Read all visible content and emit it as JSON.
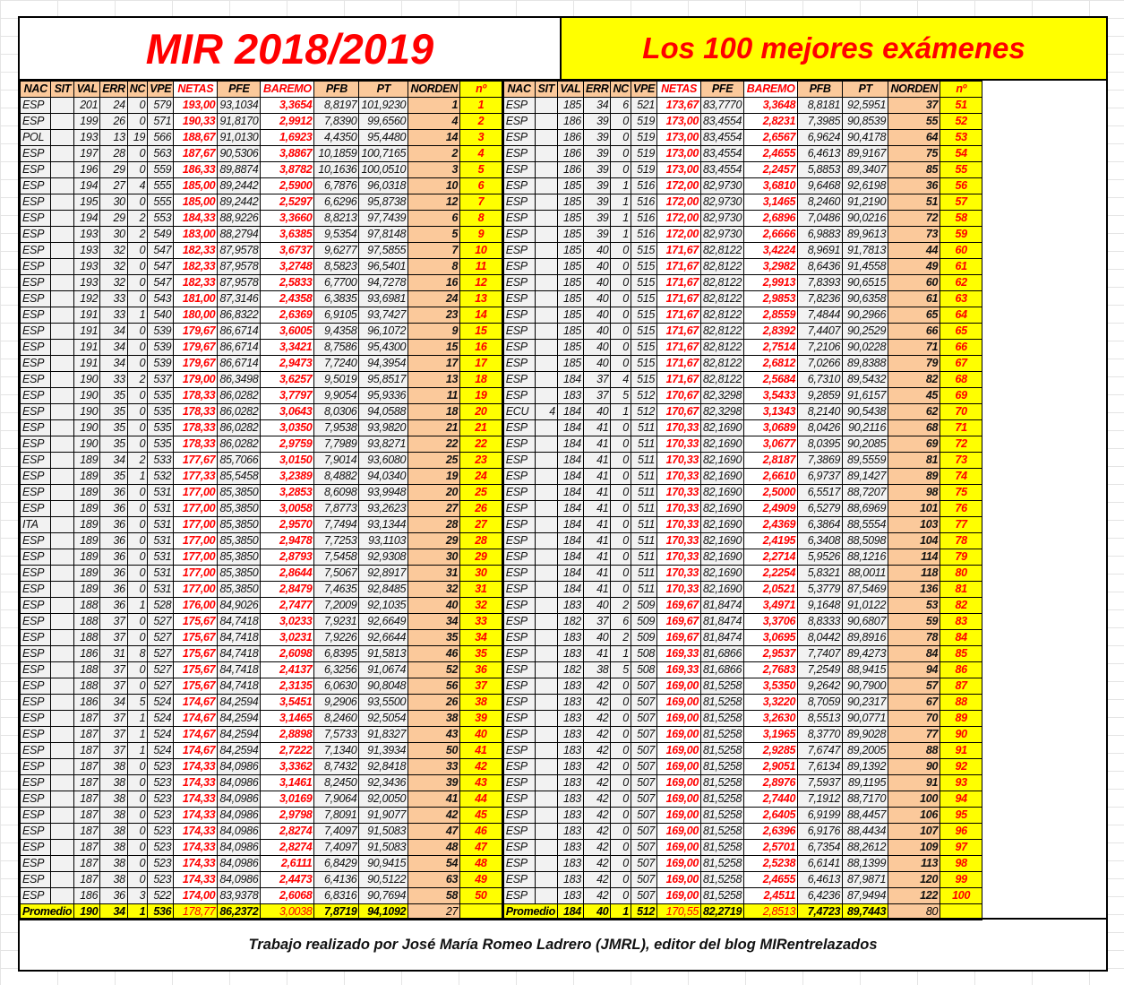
{
  "title_left": "MIR 2018/2019",
  "title_right": "Los 100 mejores exámenes",
  "columns": [
    "NAC",
    "SIT",
    "VAL",
    "ERR",
    "NC",
    "VPE",
    "NETAS",
    "PFE",
    "BAREMO",
    "PFB",
    "PT",
    "NORDEN",
    "nº"
  ],
  "left_rows": [
    [
      "ESP",
      "",
      "201",
      "24",
      "0",
      "579",
      "193,00",
      "93,1034",
      "3,3654",
      "8,8197",
      "101,9230",
      "1",
      "1"
    ],
    [
      "ESP",
      "",
      "199",
      "26",
      "0",
      "571",
      "190,33",
      "91,8170",
      "2,9912",
      "7,8390",
      "99,6560",
      "4",
      "2"
    ],
    [
      "POL",
      "",
      "193",
      "13",
      "19",
      "566",
      "188,67",
      "91,0130",
      "1,6923",
      "4,4350",
      "95,4480",
      "14",
      "3"
    ],
    [
      "ESP",
      "",
      "197",
      "28",
      "0",
      "563",
      "187,67",
      "90,5306",
      "3,8867",
      "10,1859",
      "100,7165",
      "2",
      "4"
    ],
    [
      "ESP",
      "",
      "196",
      "29",
      "0",
      "559",
      "186,33",
      "89,8874",
      "3,8782",
      "10,1636",
      "100,0510",
      "3",
      "5"
    ],
    [
      "ESP",
      "",
      "194",
      "27",
      "4",
      "555",
      "185,00",
      "89,2442",
      "2,5900",
      "6,7876",
      "96,0318",
      "10",
      "6"
    ],
    [
      "ESP",
      "",
      "195",
      "30",
      "0",
      "555",
      "185,00",
      "89,2442",
      "2,5297",
      "6,6296",
      "95,8738",
      "12",
      "7"
    ],
    [
      "ESP",
      "",
      "194",
      "29",
      "2",
      "553",
      "184,33",
      "88,9226",
      "3,3660",
      "8,8213",
      "97,7439",
      "6",
      "8"
    ],
    [
      "ESP",
      "",
      "193",
      "30",
      "2",
      "549",
      "183,00",
      "88,2794",
      "3,6385",
      "9,5354",
      "97,8148",
      "5",
      "9"
    ],
    [
      "ESP",
      "",
      "193",
      "32",
      "0",
      "547",
      "182,33",
      "87,9578",
      "3,6737",
      "9,6277",
      "97,5855",
      "7",
      "10"
    ],
    [
      "ESP",
      "",
      "193",
      "32",
      "0",
      "547",
      "182,33",
      "87,9578",
      "3,2748",
      "8,5823",
      "96,5401",
      "8",
      "11"
    ],
    [
      "ESP",
      "",
      "193",
      "32",
      "0",
      "547",
      "182,33",
      "87,9578",
      "2,5833",
      "6,7700",
      "94,7278",
      "16",
      "12"
    ],
    [
      "ESP",
      "",
      "192",
      "33",
      "0",
      "543",
      "181,00",
      "87,3146",
      "2,4358",
      "6,3835",
      "93,6981",
      "24",
      "13"
    ],
    [
      "ESP",
      "",
      "191",
      "33",
      "1",
      "540",
      "180,00",
      "86,8322",
      "2,6369",
      "6,9105",
      "93,7427",
      "23",
      "14"
    ],
    [
      "ESP",
      "",
      "191",
      "34",
      "0",
      "539",
      "179,67",
      "86,6714",
      "3,6005",
      "9,4358",
      "96,1072",
      "9",
      "15"
    ],
    [
      "ESP",
      "",
      "191",
      "34",
      "0",
      "539",
      "179,67",
      "86,6714",
      "3,3421",
      "8,7586",
      "95,4300",
      "15",
      "16"
    ],
    [
      "ESP",
      "",
      "191",
      "34",
      "0",
      "539",
      "179,67",
      "86,6714",
      "2,9473",
      "7,7240",
      "94,3954",
      "17",
      "17"
    ],
    [
      "ESP",
      "",
      "190",
      "33",
      "2",
      "537",
      "179,00",
      "86,3498",
      "3,6257",
      "9,5019",
      "95,8517",
      "13",
      "18"
    ],
    [
      "ESP",
      "",
      "190",
      "35",
      "0",
      "535",
      "178,33",
      "86,0282",
      "3,7797",
      "9,9054",
      "95,9336",
      "11",
      "19"
    ],
    [
      "ESP",
      "",
      "190",
      "35",
      "0",
      "535",
      "178,33",
      "86,0282",
      "3,0643",
      "8,0306",
      "94,0588",
      "18",
      "20"
    ],
    [
      "ESP",
      "",
      "190",
      "35",
      "0",
      "535",
      "178,33",
      "86,0282",
      "3,0350",
      "7,9538",
      "93,9820",
      "21",
      "21"
    ],
    [
      "ESP",
      "",
      "190",
      "35",
      "0",
      "535",
      "178,33",
      "86,0282",
      "2,9759",
      "7,7989",
      "93,8271",
      "22",
      "22"
    ],
    [
      "ESP",
      "",
      "189",
      "34",
      "2",
      "533",
      "177,67",
      "85,7066",
      "3,0150",
      "7,9014",
      "93,6080",
      "25",
      "23"
    ],
    [
      "ESP",
      "",
      "189",
      "35",
      "1",
      "532",
      "177,33",
      "85,5458",
      "3,2389",
      "8,4882",
      "94,0340",
      "19",
      "24"
    ],
    [
      "ESP",
      "",
      "189",
      "36",
      "0",
      "531",
      "177,00",
      "85,3850",
      "3,2853",
      "8,6098",
      "93,9948",
      "20",
      "25"
    ],
    [
      "ESP",
      "",
      "189",
      "36",
      "0",
      "531",
      "177,00",
      "85,3850",
      "3,0058",
      "7,8773",
      "93,2623",
      "27",
      "26"
    ],
    [
      "ITA",
      "",
      "189",
      "36",
      "0",
      "531",
      "177,00",
      "85,3850",
      "2,9570",
      "7,7494",
      "93,1344",
      "28",
      "27"
    ],
    [
      "ESP",
      "",
      "189",
      "36",
      "0",
      "531",
      "177,00",
      "85,3850",
      "2,9478",
      "7,7253",
      "93,1103",
      "29",
      "28"
    ],
    [
      "ESP",
      "",
      "189",
      "36",
      "0",
      "531",
      "177,00",
      "85,3850",
      "2,8793",
      "7,5458",
      "92,9308",
      "30",
      "29"
    ],
    [
      "ESP",
      "",
      "189",
      "36",
      "0",
      "531",
      "177,00",
      "85,3850",
      "2,8644",
      "7,5067",
      "92,8917",
      "31",
      "30"
    ],
    [
      "ESP",
      "",
      "189",
      "36",
      "0",
      "531",
      "177,00",
      "85,3850",
      "2,8479",
      "7,4635",
      "92,8485",
      "32",
      "31"
    ],
    [
      "ESP",
      "",
      "188",
      "36",
      "1",
      "528",
      "176,00",
      "84,9026",
      "2,7477",
      "7,2009",
      "92,1035",
      "40",
      "32"
    ],
    [
      "ESP",
      "",
      "188",
      "37",
      "0",
      "527",
      "175,67",
      "84,7418",
      "3,0233",
      "7,9231",
      "92,6649",
      "34",
      "33"
    ],
    [
      "ESP",
      "",
      "188",
      "37",
      "0",
      "527",
      "175,67",
      "84,7418",
      "3,0231",
      "7,9226",
      "92,6644",
      "35",
      "34"
    ],
    [
      "ESP",
      "",
      "186",
      "31",
      "8",
      "527",
      "175,67",
      "84,7418",
      "2,6098",
      "6,8395",
      "91,5813",
      "46",
      "35"
    ],
    [
      "ESP",
      "",
      "188",
      "37",
      "0",
      "527",
      "175,67",
      "84,7418",
      "2,4137",
      "6,3256",
      "91,0674",
      "52",
      "36"
    ],
    [
      "ESP",
      "",
      "188",
      "37",
      "0",
      "527",
      "175,67",
      "84,7418",
      "2,3135",
      "6,0630",
      "90,8048",
      "56",
      "37"
    ],
    [
      "ESP",
      "",
      "186",
      "34",
      "5",
      "524",
      "174,67",
      "84,2594",
      "3,5451",
      "9,2906",
      "93,5500",
      "26",
      "38"
    ],
    [
      "ESP",
      "",
      "187",
      "37",
      "1",
      "524",
      "174,67",
      "84,2594",
      "3,1465",
      "8,2460",
      "92,5054",
      "38",
      "39"
    ],
    [
      "ESP",
      "",
      "187",
      "37",
      "1",
      "524",
      "174,67",
      "84,2594",
      "2,8898",
      "7,5733",
      "91,8327",
      "43",
      "40"
    ],
    [
      "ESP",
      "",
      "187",
      "37",
      "1",
      "524",
      "174,67",
      "84,2594",
      "2,7222",
      "7,1340",
      "91,3934",
      "50",
      "41"
    ],
    [
      "ESP",
      "",
      "187",
      "38",
      "0",
      "523",
      "174,33",
      "84,0986",
      "3,3362",
      "8,7432",
      "92,8418",
      "33",
      "42"
    ],
    [
      "ESP",
      "",
      "187",
      "38",
      "0",
      "523",
      "174,33",
      "84,0986",
      "3,1461",
      "8,2450",
      "92,3436",
      "39",
      "43"
    ],
    [
      "ESP",
      "",
      "187",
      "38",
      "0",
      "523",
      "174,33",
      "84,0986",
      "3,0169",
      "7,9064",
      "92,0050",
      "41",
      "44"
    ],
    [
      "ESP",
      "",
      "187",
      "38",
      "0",
      "523",
      "174,33",
      "84,0986",
      "2,9798",
      "7,8091",
      "91,9077",
      "42",
      "45"
    ],
    [
      "ESP",
      "",
      "187",
      "38",
      "0",
      "523",
      "174,33",
      "84,0986",
      "2,8274",
      "7,4097",
      "91,5083",
      "47",
      "46"
    ],
    [
      "ESP",
      "",
      "187",
      "38",
      "0",
      "523",
      "174,33",
      "84,0986",
      "2,8274",
      "7,4097",
      "91,5083",
      "48",
      "47"
    ],
    [
      "ESP",
      "",
      "187",
      "38",
      "0",
      "523",
      "174,33",
      "84,0986",
      "2,6111",
      "6,8429",
      "90,9415",
      "54",
      "48"
    ],
    [
      "ESP",
      "",
      "187",
      "38",
      "0",
      "523",
      "174,33",
      "84,0986",
      "2,4473",
      "6,4136",
      "90,5122",
      "63",
      "49"
    ],
    [
      "ESP",
      "",
      "186",
      "36",
      "3",
      "522",
      "174,00",
      "83,9378",
      "2,6068",
      "6,8316",
      "90,7694",
      "58",
      "50"
    ]
  ],
  "left_average": [
    "Promedio",
    "190",
    "34",
    "1",
    "536",
    "178,77",
    "86,2372",
    "3,0038",
    "7,8719",
    "94,1092",
    "27",
    ""
  ],
  "right_rows": [
    [
      "ESP",
      "",
      "185",
      "34",
      "6",
      "521",
      "173,67",
      "83,7770",
      "3,3648",
      "8,8181",
      "92,5951",
      "37",
      "51"
    ],
    [
      "ESP",
      "",
      "186",
      "39",
      "0",
      "519",
      "173,00",
      "83,4554",
      "2,8231",
      "7,3985",
      "90,8539",
      "55",
      "52"
    ],
    [
      "ESP",
      "",
      "186",
      "39",
      "0",
      "519",
      "173,00",
      "83,4554",
      "2,6567",
      "6,9624",
      "90,4178",
      "64",
      "53"
    ],
    [
      "ESP",
      "",
      "186",
      "39",
      "0",
      "519",
      "173,00",
      "83,4554",
      "2,4655",
      "6,4613",
      "89,9167",
      "75",
      "54"
    ],
    [
      "ESP",
      "",
      "186",
      "39",
      "0",
      "519",
      "173,00",
      "83,4554",
      "2,2457",
      "5,8853",
      "89,3407",
      "85",
      "55"
    ],
    [
      "ESP",
      "",
      "185",
      "39",
      "1",
      "516",
      "172,00",
      "82,9730",
      "3,6810",
      "9,6468",
      "92,6198",
      "36",
      "56"
    ],
    [
      "ESP",
      "",
      "185",
      "39",
      "1",
      "516",
      "172,00",
      "82,9730",
      "3,1465",
      "8,2460",
      "91,2190",
      "51",
      "57"
    ],
    [
      "ESP",
      "",
      "185",
      "39",
      "1",
      "516",
      "172,00",
      "82,9730",
      "2,6896",
      "7,0486",
      "90,0216",
      "72",
      "58"
    ],
    [
      "ESP",
      "",
      "185",
      "39",
      "1",
      "516",
      "172,00",
      "82,9730",
      "2,6666",
      "6,9883",
      "89,9613",
      "73",
      "59"
    ],
    [
      "ESP",
      "",
      "185",
      "40",
      "0",
      "515",
      "171,67",
      "82,8122",
      "3,4224",
      "8,9691",
      "91,7813",
      "44",
      "60"
    ],
    [
      "ESP",
      "",
      "185",
      "40",
      "0",
      "515",
      "171,67",
      "82,8122",
      "3,2982",
      "8,6436",
      "91,4558",
      "49",
      "61"
    ],
    [
      "ESP",
      "",
      "185",
      "40",
      "0",
      "515",
      "171,67",
      "82,8122",
      "2,9913",
      "7,8393",
      "90,6515",
      "60",
      "62"
    ],
    [
      "ESP",
      "",
      "185",
      "40",
      "0",
      "515",
      "171,67",
      "82,8122",
      "2,9853",
      "7,8236",
      "90,6358",
      "61",
      "63"
    ],
    [
      "ESP",
      "",
      "185",
      "40",
      "0",
      "515",
      "171,67",
      "82,8122",
      "2,8559",
      "7,4844",
      "90,2966",
      "65",
      "64"
    ],
    [
      "ESP",
      "",
      "185",
      "40",
      "0",
      "515",
      "171,67",
      "82,8122",
      "2,8392",
      "7,4407",
      "90,2529",
      "66",
      "65"
    ],
    [
      "ESP",
      "",
      "185",
      "40",
      "0",
      "515",
      "171,67",
      "82,8122",
      "2,7514",
      "7,2106",
      "90,0228",
      "71",
      "66"
    ],
    [
      "ESP",
      "",
      "185",
      "40",
      "0",
      "515",
      "171,67",
      "82,8122",
      "2,6812",
      "7,0266",
      "89,8388",
      "79",
      "67"
    ],
    [
      "ESP",
      "",
      "184",
      "37",
      "4",
      "515",
      "171,67",
      "82,8122",
      "2,5684",
      "6,7310",
      "89,5432",
      "82",
      "68"
    ],
    [
      "ESP",
      "",
      "183",
      "37",
      "5",
      "512",
      "170,67",
      "82,3298",
      "3,5433",
      "9,2859",
      "91,6157",
      "45",
      "69"
    ],
    [
      "ECU",
      "4",
      "184",
      "40",
      "1",
      "512",
      "170,67",
      "82,3298",
      "3,1343",
      "8,2140",
      "90,5438",
      "62",
      "70"
    ],
    [
      "ESP",
      "",
      "184",
      "41",
      "0",
      "511",
      "170,33",
      "82,1690",
      "3,0689",
      "8,0426",
      "90,2116",
      "68",
      "71"
    ],
    [
      "ESP",
      "",
      "184",
      "41",
      "0",
      "511",
      "170,33",
      "82,1690",
      "3,0677",
      "8,0395",
      "90,2085",
      "69",
      "72"
    ],
    [
      "ESP",
      "",
      "184",
      "41",
      "0",
      "511",
      "170,33",
      "82,1690",
      "2,8187",
      "7,3869",
      "89,5559",
      "81",
      "73"
    ],
    [
      "ESP",
      "",
      "184",
      "41",
      "0",
      "511",
      "170,33",
      "82,1690",
      "2,6610",
      "6,9737",
      "89,1427",
      "89",
      "74"
    ],
    [
      "ESP",
      "",
      "184",
      "41",
      "0",
      "511",
      "170,33",
      "82,1690",
      "2,5000",
      "6,5517",
      "88,7207",
      "98",
      "75"
    ],
    [
      "ESP",
      "",
      "184",
      "41",
      "0",
      "511",
      "170,33",
      "82,1690",
      "2,4909",
      "6,5279",
      "88,6969",
      "101",
      "76"
    ],
    [
      "ESP",
      "",
      "184",
      "41",
      "0",
      "511",
      "170,33",
      "82,1690",
      "2,4369",
      "6,3864",
      "88,5554",
      "103",
      "77"
    ],
    [
      "ESP",
      "",
      "184",
      "41",
      "0",
      "511",
      "170,33",
      "82,1690",
      "2,4195",
      "6,3408",
      "88,5098",
      "104",
      "78"
    ],
    [
      "ESP",
      "",
      "184",
      "41",
      "0",
      "511",
      "170,33",
      "82,1690",
      "2,2714",
      "5,9526",
      "88,1216",
      "114",
      "79"
    ],
    [
      "ESP",
      "",
      "184",
      "41",
      "0",
      "511",
      "170,33",
      "82,1690",
      "2,2254",
      "5,8321",
      "88,0011",
      "118",
      "80"
    ],
    [
      "ESP",
      "",
      "184",
      "41",
      "0",
      "511",
      "170,33",
      "82,1690",
      "2,0521",
      "5,3779",
      "87,5469",
      "136",
      "81"
    ],
    [
      "ESP",
      "",
      "183",
      "40",
      "2",
      "509",
      "169,67",
      "81,8474",
      "3,4971",
      "9,1648",
      "91,0122",
      "53",
      "82"
    ],
    [
      "ESP",
      "",
      "182",
      "37",
      "6",
      "509",
      "169,67",
      "81,8474",
      "3,3706",
      "8,8333",
      "90,6807",
      "59",
      "83"
    ],
    [
      "ESP",
      "",
      "183",
      "40",
      "2",
      "509",
      "169,67",
      "81,8474",
      "3,0695",
      "8,0442",
      "89,8916",
      "78",
      "84"
    ],
    [
      "ESP",
      "",
      "183",
      "41",
      "1",
      "508",
      "169,33",
      "81,6866",
      "2,9537",
      "7,7407",
      "89,4273",
      "84",
      "85"
    ],
    [
      "ESP",
      "",
      "182",
      "38",
      "5",
      "508",
      "169,33",
      "81,6866",
      "2,7683",
      "7,2549",
      "88,9415",
      "94",
      "86"
    ],
    [
      "ESP",
      "",
      "183",
      "42",
      "0",
      "507",
      "169,00",
      "81,5258",
      "3,5350",
      "9,2642",
      "90,7900",
      "57",
      "87"
    ],
    [
      "ESP",
      "",
      "183",
      "42",
      "0",
      "507",
      "169,00",
      "81,5258",
      "3,3220",
      "8,7059",
      "90,2317",
      "67",
      "88"
    ],
    [
      "ESP",
      "",
      "183",
      "42",
      "0",
      "507",
      "169,00",
      "81,5258",
      "3,2630",
      "8,5513",
      "90,0771",
      "70",
      "89"
    ],
    [
      "ESP",
      "",
      "183",
      "42",
      "0",
      "507",
      "169,00",
      "81,5258",
      "3,1965",
      "8,3770",
      "89,9028",
      "77",
      "90"
    ],
    [
      "ESP",
      "",
      "183",
      "42",
      "0",
      "507",
      "169,00",
      "81,5258",
      "2,9285",
      "7,6747",
      "89,2005",
      "88",
      "91"
    ],
    [
      "ESP",
      "",
      "183",
      "42",
      "0",
      "507",
      "169,00",
      "81,5258",
      "2,9051",
      "7,6134",
      "89,1392",
      "90",
      "92"
    ],
    [
      "ESP",
      "",
      "183",
      "42",
      "0",
      "507",
      "169,00",
      "81,5258",
      "2,8976",
      "7,5937",
      "89,1195",
      "91",
      "93"
    ],
    [
      "ESP",
      "",
      "183",
      "42",
      "0",
      "507",
      "169,00",
      "81,5258",
      "2,7440",
      "7,1912",
      "88,7170",
      "100",
      "94"
    ],
    [
      "ESP",
      "",
      "183",
      "42",
      "0",
      "507",
      "169,00",
      "81,5258",
      "2,6405",
      "6,9199",
      "88,4457",
      "106",
      "95"
    ],
    [
      "ESP",
      "",
      "183",
      "42",
      "0",
      "507",
      "169,00",
      "81,5258",
      "2,6396",
      "6,9176",
      "88,4434",
      "107",
      "96"
    ],
    [
      "ESP",
      "",
      "183",
      "42",
      "0",
      "507",
      "169,00",
      "81,5258",
      "2,5701",
      "6,7354",
      "88,2612",
      "109",
      "97"
    ],
    [
      "ESP",
      "",
      "183",
      "42",
      "0",
      "507",
      "169,00",
      "81,5258",
      "2,5238",
      "6,6141",
      "88,1399",
      "113",
      "98"
    ],
    [
      "ESP",
      "",
      "183",
      "42",
      "0",
      "507",
      "169,00",
      "81,5258",
      "2,4655",
      "6,4613",
      "87,9871",
      "120",
      "99"
    ],
    [
      "ESP",
      "",
      "183",
      "42",
      "0",
      "507",
      "169,00",
      "81,5258",
      "2,4511",
      "6,4236",
      "87,9494",
      "122",
      "100"
    ]
  ],
  "right_average": [
    "Promedio",
    "184",
    "40",
    "1",
    "512",
    "170,55",
    "82,2719",
    "2,8513",
    "7,4723",
    "89,7443",
    "80",
    ""
  ],
  "footer": "Trabajo realizado por José María Romeo Ladrero (JMRL), editor del blog MIRentrelazados",
  "colors": {
    "header_peach": "#fbc99b",
    "highlight_yellow": "#ffff00",
    "accent_red": "#ff0000",
    "cell_grey": "#f2f2f2"
  }
}
